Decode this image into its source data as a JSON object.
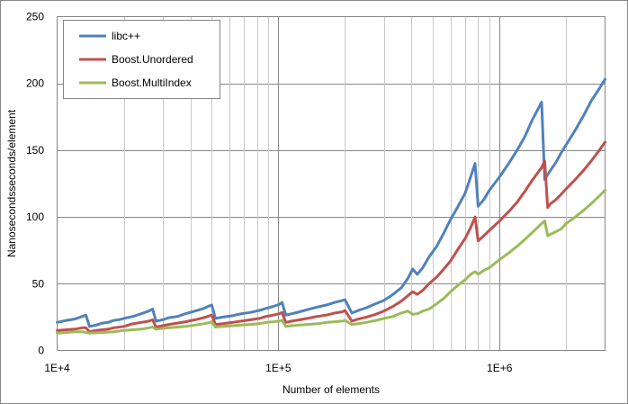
{
  "chart_data": {
    "type": "line",
    "title": "",
    "xlabel": "Number of elements",
    "ylabel": "Nanosecondsseconds/element",
    "xscale": "log",
    "xlim": [
      10000,
      3000000
    ],
    "ylim": [
      0,
      250
    ],
    "yticks": [
      0,
      50,
      100,
      150,
      200,
      250
    ],
    "xticks": [
      10000,
      100000,
      1000000
    ],
    "xtick_labels": [
      "1E+4",
      "1E+5",
      "1E+6"
    ],
    "ytick_labels": [
      "0",
      "50",
      "100",
      "150",
      "200",
      "250"
    ],
    "grid": true,
    "legend_position": "top-left",
    "series": [
      {
        "name": "libc++",
        "color": "#4f81bd",
        "points": [
          [
            10000,
            21
          ],
          [
            11000,
            22.5
          ],
          [
            12000,
            23.5
          ],
          [
            13000,
            25.5
          ],
          [
            13500,
            26.5
          ],
          [
            14000,
            18
          ],
          [
            15000,
            19
          ],
          [
            16000,
            20.5
          ],
          [
            17000,
            21
          ],
          [
            18000,
            22.5
          ],
          [
            19000,
            23
          ],
          [
            20000,
            24
          ],
          [
            22000,
            25.5
          ],
          [
            24000,
            27.5
          ],
          [
            26000,
            29.5
          ],
          [
            27000,
            31
          ],
          [
            28000,
            22
          ],
          [
            30000,
            23
          ],
          [
            32000,
            24.5
          ],
          [
            35000,
            25.5
          ],
          [
            38000,
            27.5
          ],
          [
            42000,
            29.5
          ],
          [
            46000,
            31.5
          ],
          [
            49000,
            33.5
          ],
          [
            50000,
            34
          ],
          [
            52000,
            24
          ],
          [
            56000,
            25
          ],
          [
            62000,
            26
          ],
          [
            68000,
            27.5
          ],
          [
            75000,
            28.5
          ],
          [
            82000,
            30
          ],
          [
            88000,
            31.5
          ],
          [
            95000,
            33
          ],
          [
            101000,
            34.5
          ],
          [
            104000,
            36
          ],
          [
            108000,
            26.5
          ],
          [
            115000,
            27.5
          ],
          [
            125000,
            29
          ],
          [
            135000,
            30.5
          ],
          [
            150000,
            32.5
          ],
          [
            165000,
            34
          ],
          [
            180000,
            36
          ],
          [
            195000,
            37.5
          ],
          [
            200000,
            38
          ],
          [
            215000,
            28
          ],
          [
            230000,
            30
          ],
          [
            250000,
            32
          ],
          [
            275000,
            35
          ],
          [
            300000,
            37.5
          ],
          [
            330000,
            42
          ],
          [
            360000,
            47
          ],
          [
            385000,
            54
          ],
          [
            405000,
            61
          ],
          [
            425000,
            57
          ],
          [
            450000,
            62
          ],
          [
            480000,
            70
          ],
          [
            520000,
            78
          ],
          [
            560000,
            88
          ],
          [
            600000,
            98
          ],
          [
            650000,
            108
          ],
          [
            700000,
            118
          ],
          [
            740000,
            130
          ],
          [
            775000,
            140
          ],
          [
            800000,
            108
          ],
          [
            850000,
            113
          ],
          [
            900000,
            120
          ],
          [
            1000000,
            130
          ],
          [
            1100000,
            140
          ],
          [
            1200000,
            150
          ],
          [
            1300000,
            160
          ],
          [
            1400000,
            172
          ],
          [
            1550000,
            186
          ],
          [
            1600000,
            128
          ],
          [
            1700000,
            135
          ],
          [
            1800000,
            141
          ],
          [
            1900000,
            148
          ],
          [
            2000000,
            154
          ],
          [
            2200000,
            165
          ],
          [
            2400000,
            176
          ],
          [
            2600000,
            187
          ],
          [
            2800000,
            195
          ],
          [
            3000000,
            203
          ]
        ]
      },
      {
        "name": "Boost.Unordered",
        "color": "#c0504d",
        "points": [
          [
            10000,
            15
          ],
          [
            11000,
            15.5
          ],
          [
            12000,
            16
          ],
          [
            13000,
            17
          ],
          [
            13500,
            17
          ],
          [
            14000,
            14
          ],
          [
            15000,
            15
          ],
          [
            16000,
            15.5
          ],
          [
            17000,
            16
          ],
          [
            18000,
            17
          ],
          [
            20000,
            18
          ],
          [
            22000,
            20
          ],
          [
            24000,
            21
          ],
          [
            26000,
            22
          ],
          [
            27000,
            23
          ],
          [
            28000,
            17.5
          ],
          [
            30000,
            18.5
          ],
          [
            32000,
            19.5
          ],
          [
            35000,
            20.5
          ],
          [
            38000,
            21.5
          ],
          [
            42000,
            23
          ],
          [
            46000,
            24.5
          ],
          [
            49000,
            26
          ],
          [
            50000,
            26.5
          ],
          [
            52000,
            19.5
          ],
          [
            56000,
            20
          ],
          [
            62000,
            21
          ],
          [
            68000,
            22
          ],
          [
            75000,
            23
          ],
          [
            82000,
            24
          ],
          [
            88000,
            25.5
          ],
          [
            95000,
            26.5
          ],
          [
            101000,
            27.5
          ],
          [
            104000,
            28.5
          ],
          [
            108000,
            21
          ],
          [
            115000,
            22
          ],
          [
            125000,
            23
          ],
          [
            135000,
            24
          ],
          [
            150000,
            25.5
          ],
          [
            165000,
            26.5
          ],
          [
            180000,
            28
          ],
          [
            195000,
            29
          ],
          [
            200000,
            30
          ],
          [
            215000,
            22
          ],
          [
            230000,
            23.5
          ],
          [
            250000,
            25
          ],
          [
            275000,
            27
          ],
          [
            300000,
            29.5
          ],
          [
            330000,
            33
          ],
          [
            360000,
            37
          ],
          [
            385000,
            41
          ],
          [
            405000,
            44
          ],
          [
            425000,
            42
          ],
          [
            450000,
            45
          ],
          [
            480000,
            50
          ],
          [
            520000,
            55
          ],
          [
            560000,
            61
          ],
          [
            600000,
            67
          ],
          [
            650000,
            76
          ],
          [
            700000,
            84
          ],
          [
            740000,
            92
          ],
          [
            775000,
            100
          ],
          [
            800000,
            82
          ],
          [
            850000,
            86
          ],
          [
            900000,
            90
          ],
          [
            1000000,
            97
          ],
          [
            1100000,
            104
          ],
          [
            1200000,
            111
          ],
          [
            1300000,
            119
          ],
          [
            1400000,
            127
          ],
          [
            1550000,
            137
          ],
          [
            1600000,
            142
          ],
          [
            1650000,
            107
          ],
          [
            1700000,
            110
          ],
          [
            1800000,
            113
          ],
          [
            1900000,
            117
          ],
          [
            2000000,
            121
          ],
          [
            2200000,
            128
          ],
          [
            2400000,
            135
          ],
          [
            2600000,
            142
          ],
          [
            2800000,
            149
          ],
          [
            3000000,
            156
          ]
        ]
      },
      {
        "name": "Boost.MultiIndex",
        "color": "#9bbb59",
        "points": [
          [
            10000,
            13
          ],
          [
            11000,
            13.5
          ],
          [
            12000,
            14
          ],
          [
            13000,
            14
          ],
          [
            13500,
            13.5
          ],
          [
            14000,
            13
          ],
          [
            16000,
            13.5
          ],
          [
            18000,
            14
          ],
          [
            20000,
            15
          ],
          [
            22000,
            15.5
          ],
          [
            24000,
            16
          ],
          [
            26000,
            17
          ],
          [
            27000,
            17.5
          ],
          [
            28000,
            16
          ],
          [
            30000,
            16.5
          ],
          [
            32000,
            17
          ],
          [
            35000,
            17.5
          ],
          [
            38000,
            18
          ],
          [
            42000,
            19
          ],
          [
            46000,
            20
          ],
          [
            49000,
            21
          ],
          [
            50000,
            21.5
          ],
          [
            52000,
            17.5
          ],
          [
            56000,
            18
          ],
          [
            62000,
            18.5
          ],
          [
            68000,
            19
          ],
          [
            75000,
            19.5
          ],
          [
            82000,
            20
          ],
          [
            88000,
            21
          ],
          [
            95000,
            21.5
          ],
          [
            101000,
            22
          ],
          [
            104000,
            22.5
          ],
          [
            108000,
            18
          ],
          [
            115000,
            18.5
          ],
          [
            125000,
            19
          ],
          [
            135000,
            19.5
          ],
          [
            150000,
            20
          ],
          [
            165000,
            21
          ],
          [
            180000,
            21.5
          ],
          [
            195000,
            22
          ],
          [
            200000,
            22.5
          ],
          [
            215000,
            19.5
          ],
          [
            230000,
            20
          ],
          [
            250000,
            21
          ],
          [
            275000,
            22.5
          ],
          [
            300000,
            24
          ],
          [
            330000,
            25.5
          ],
          [
            360000,
            28
          ],
          [
            385000,
            29.5
          ],
          [
            405000,
            27
          ],
          [
            425000,
            27.5
          ],
          [
            450000,
            29.5
          ],
          [
            480000,
            31
          ],
          [
            520000,
            35
          ],
          [
            560000,
            39
          ],
          [
            600000,
            44
          ],
          [
            650000,
            49
          ],
          [
            700000,
            53
          ],
          [
            740000,
            57
          ],
          [
            775000,
            59
          ],
          [
            800000,
            57
          ],
          [
            850000,
            60
          ],
          [
            900000,
            62
          ],
          [
            1000000,
            68
          ],
          [
            1100000,
            73
          ],
          [
            1200000,
            78
          ],
          [
            1300000,
            83
          ],
          [
            1400000,
            88
          ],
          [
            1550000,
            95
          ],
          [
            1600000,
            97
          ],
          [
            1650000,
            86
          ],
          [
            1700000,
            87
          ],
          [
            1800000,
            89
          ],
          [
            1900000,
            91
          ],
          [
            2000000,
            95
          ],
          [
            2200000,
            100
          ],
          [
            2400000,
            105
          ],
          [
            2600000,
            110
          ],
          [
            2800000,
            115
          ],
          [
            3000000,
            120
          ]
        ]
      }
    ]
  }
}
